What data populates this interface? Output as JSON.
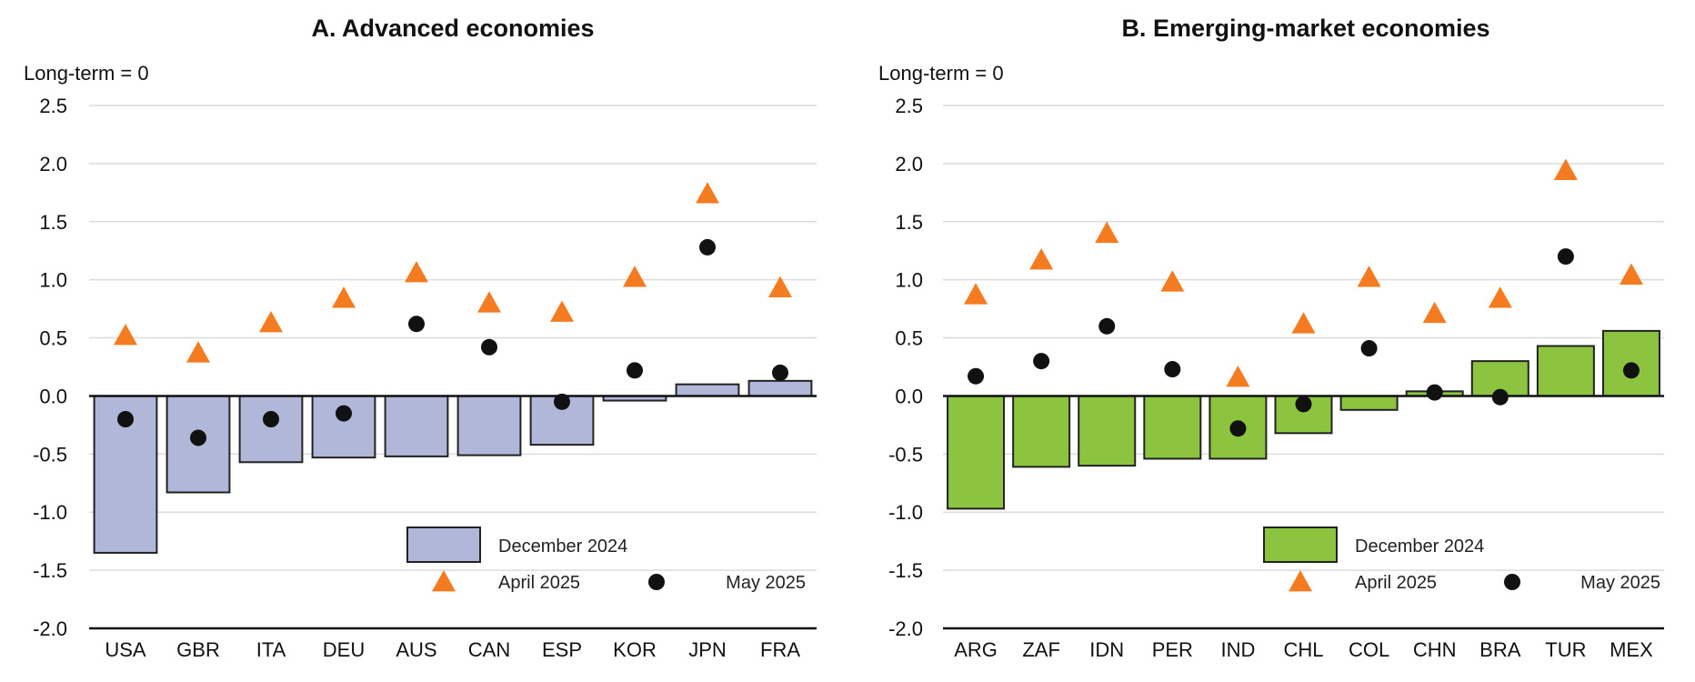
{
  "chart_data": [
    {
      "type": "bar",
      "title": "A. Advanced economies",
      "ylabel": "Long-term = 0",
      "xlabel": "",
      "ylim": [
        -2.0,
        2.5
      ],
      "yticks": [
        "2.5",
        "2.0",
        "1.5",
        "1.0",
        "0.5",
        "0.0",
        "-0.5",
        "-1.0",
        "-1.5",
        "-2.0"
      ],
      "ytick_values": [
        2.5,
        2.0,
        1.5,
        1.0,
        0.5,
        0.0,
        -0.5,
        -1.0,
        -1.5,
        -2.0
      ],
      "categories": [
        "USA",
        "GBR",
        "ITA",
        "DEU",
        "AUS",
        "CAN",
        "ESP",
        "KOR",
        "JPN",
        "FRA"
      ],
      "grid": true,
      "legend_position": "bottom-right",
      "bar_color": "#b0b7d9",
      "series": [
        {
          "name": "December 2024",
          "kind": "bar",
          "values": [
            -1.35,
            -0.83,
            -0.57,
            -0.53,
            -0.52,
            -0.51,
            -0.42,
            -0.04,
            0.1,
            0.13
          ]
        },
        {
          "name": "April 2025",
          "kind": "triangle",
          "color": "#f47b20",
          "values": [
            0.52,
            0.37,
            0.63,
            0.84,
            1.06,
            0.8,
            0.72,
            1.02,
            1.74,
            0.93
          ]
        },
        {
          "name": "May 2025",
          "kind": "dot",
          "color": "#111111",
          "values": [
            -0.2,
            -0.36,
            -0.2,
            -0.15,
            0.62,
            0.42,
            -0.05,
            0.22,
            1.28,
            0.2
          ]
        }
      ]
    },
    {
      "type": "bar",
      "title": "B. Emerging-market economies",
      "ylabel": "Long-term = 0",
      "xlabel": "",
      "ylim": [
        -2.0,
        2.5
      ],
      "yticks": [
        "2.5",
        "2.0",
        "1.5",
        "1.0",
        "0.5",
        "0.0",
        "-0.5",
        "-1.0",
        "-1.5",
        "-2.0"
      ],
      "ytick_values": [
        2.5,
        2.0,
        1.5,
        1.0,
        0.5,
        0.0,
        -0.5,
        -1.0,
        -1.5,
        -2.0
      ],
      "categories": [
        "ARG",
        "ZAF",
        "IDN",
        "PER",
        "IND",
        "CHL",
        "COL",
        "CHN",
        "BRA",
        "TUR",
        "MEX"
      ],
      "grid": true,
      "legend_position": "bottom-right",
      "bar_color": "#8cc43f",
      "series": [
        {
          "name": "December 2024",
          "kind": "bar",
          "values": [
            -0.97,
            -0.61,
            -0.6,
            -0.54,
            -0.54,
            -0.32,
            -0.12,
            0.04,
            0.3,
            0.43,
            0.56
          ]
        },
        {
          "name": "April 2025",
          "kind": "triangle",
          "color": "#f47b20",
          "values": [
            0.87,
            1.17,
            1.4,
            0.98,
            0.16,
            0.62,
            1.02,
            0.71,
            0.84,
            1.94,
            1.04
          ]
        },
        {
          "name": "May 2025",
          "kind": "dot",
          "color": "#111111",
          "values": [
            0.17,
            0.3,
            0.6,
            0.23,
            -0.28,
            -0.07,
            0.41,
            0.03,
            -0.01,
            1.2,
            0.22
          ]
        }
      ]
    }
  ]
}
